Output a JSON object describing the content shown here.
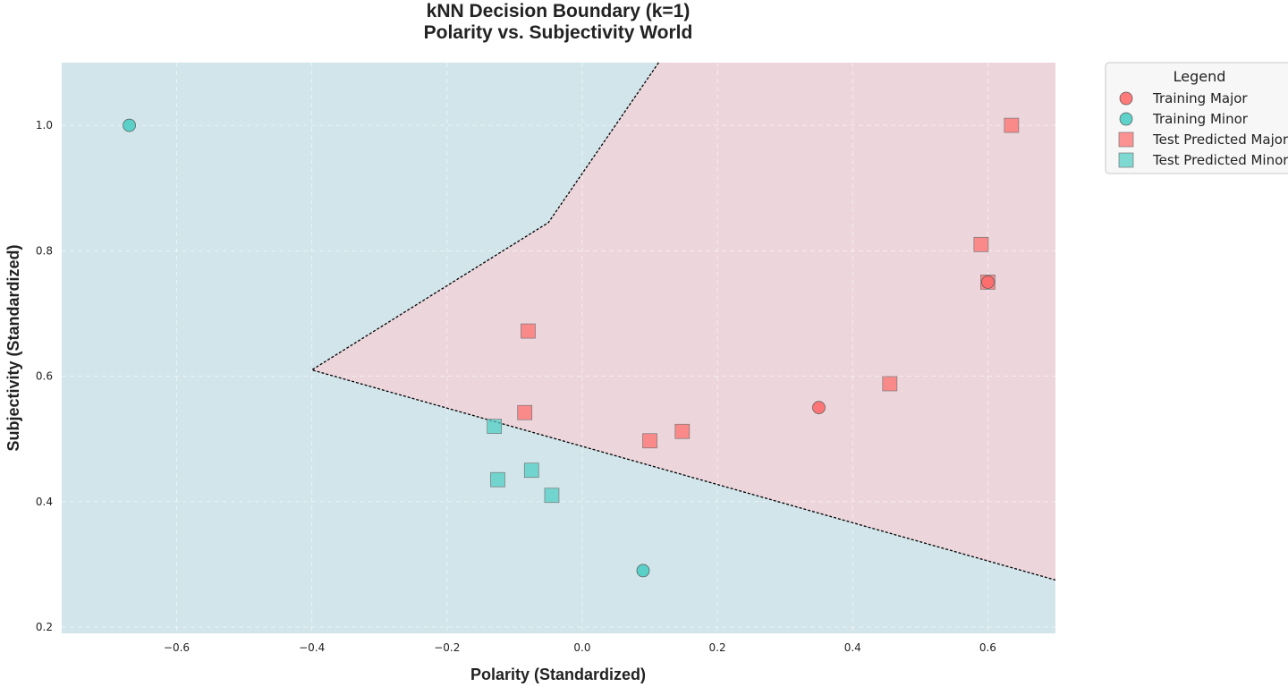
{
  "chart_data": {
    "type": "scatter",
    "title_line1": "kNN Decision Boundary (k=1)",
    "title_line2": "Polarity vs. Subjectivity World",
    "xlabel": "Polarity (Standardized)",
    "ylabel": "Subjectivity (Standardized)",
    "xlim": [
      -0.77,
      0.7
    ],
    "ylim": [
      0.19,
      1.1
    ],
    "xticks": [
      -0.6,
      -0.4,
      -0.2,
      0.0,
      0.2,
      0.4,
      0.6
    ],
    "xtick_labels": [
      "−0.6",
      "−0.4",
      "−0.2",
      "0.0",
      "0.2",
      "0.4",
      "0.6"
    ],
    "yticks": [
      0.2,
      0.4,
      0.6,
      0.8,
      1.0
    ],
    "ytick_labels": [
      "0.2",
      "0.4",
      "0.6",
      "0.8",
      "1.0"
    ],
    "grid": true,
    "legend": {
      "title": "Legend",
      "placement": "outside-top-right",
      "entries": [
        "Training Major",
        "Training Minor",
        "Test Predicted Major",
        "Test Predicted Minor"
      ]
    },
    "colors": {
      "major": "#ff6b6b",
      "minor": "#4ecdc4",
      "region_major": "#ecd6dc",
      "region_minor": "#d1e5ea",
      "boundary": "#000000"
    },
    "regions": {
      "major_polygon": [
        [
          0.113,
          1.1
        ],
        [
          0.7,
          1.1
        ],
        [
          0.7,
          0.275
        ],
        [
          -0.4,
          0.61
        ],
        [
          -0.05,
          0.845
        ]
      ]
    },
    "boundary_line": [
      [
        0.113,
        1.1
      ],
      [
        -0.05,
        0.845
      ],
      [
        -0.4,
        0.61
      ],
      [
        0.7,
        0.275
      ]
    ],
    "series": [
      {
        "name": "Training Major",
        "marker": "circle",
        "class": "major",
        "points": [
          [
            0.35,
            0.55
          ],
          [
            0.6,
            0.75
          ]
        ]
      },
      {
        "name": "Training Minor",
        "marker": "circle",
        "class": "minor",
        "points": [
          [
            -0.67,
            1.0
          ],
          [
            0.09,
            0.29
          ]
        ]
      },
      {
        "name": "Test Predicted Major",
        "marker": "square",
        "class": "major",
        "points": [
          [
            0.635,
            1.0
          ],
          [
            0.59,
            0.81
          ],
          [
            0.6,
            0.75
          ],
          [
            -0.08,
            0.672
          ],
          [
            0.455,
            0.588
          ],
          [
            -0.085,
            0.542
          ],
          [
            0.148,
            0.512
          ],
          [
            0.1,
            0.497
          ]
        ]
      },
      {
        "name": "Test Predicted Minor",
        "marker": "square",
        "class": "minor",
        "points": [
          [
            -0.13,
            0.52
          ],
          [
            -0.075,
            0.45
          ],
          [
            -0.125,
            0.435
          ],
          [
            -0.045,
            0.41
          ]
        ]
      }
    ]
  }
}
